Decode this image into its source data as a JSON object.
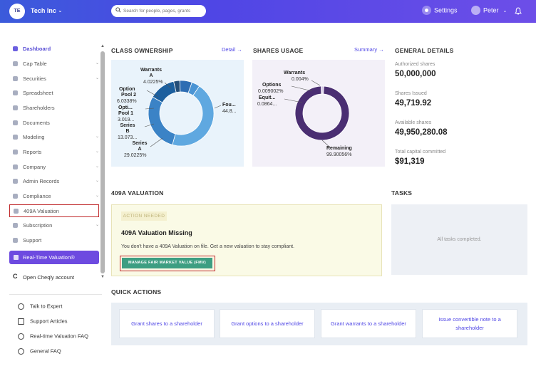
{
  "header": {
    "avatar_initials": "TE",
    "company": "Tech Inc",
    "search_placeholder": "Search for people, pages, grants",
    "settings_label": "Settings",
    "user_name": "Peter"
  },
  "sidebar": {
    "items": [
      {
        "label": "Dashboard",
        "icon": "dashboard-icon",
        "chevron": false
      },
      {
        "label": "Cap Table",
        "icon": "cap-table-icon",
        "chevron": true
      },
      {
        "label": "Securities",
        "icon": "securities-icon",
        "chevron": true
      },
      {
        "label": "Spreadsheet",
        "icon": "spreadsheet-icon",
        "chevron": false
      },
      {
        "label": "Shareholders",
        "icon": "shareholders-icon",
        "chevron": false
      },
      {
        "label": "Documents",
        "icon": "documents-icon",
        "chevron": false
      },
      {
        "label": "Modeling",
        "icon": "modeling-icon",
        "chevron": true
      },
      {
        "label": "Reports",
        "icon": "reports-icon",
        "chevron": true
      },
      {
        "label": "Company",
        "icon": "company-icon",
        "chevron": true
      },
      {
        "label": "Admin Records",
        "icon": "admin-records-icon",
        "chevron": true
      },
      {
        "label": "Compliance",
        "icon": "compliance-icon",
        "chevron": true
      },
      {
        "label": "409A Valuation",
        "icon": "valuation-icon",
        "chevron": false
      },
      {
        "label": "Subscription",
        "icon": "subscription-icon",
        "chevron": true
      },
      {
        "label": "Support",
        "icon": "support-icon",
        "chevron": false
      }
    ],
    "realtime_valuation": "Real-Time Valuation®",
    "open_cheqly": "Open Cheqly account",
    "help_links": [
      {
        "label": "Talk to Expert",
        "icon": "headset-icon"
      },
      {
        "label": "Support Articles",
        "icon": "book-icon"
      },
      {
        "label": "Real-time Valuation FAQ",
        "icon": "help-circle-icon"
      },
      {
        "label": "General FAQ",
        "icon": "help-circle-icon"
      }
    ]
  },
  "class_ownership": {
    "title": "CLASS OWNERSHIP",
    "link": "Detail",
    "labels": {
      "warrants_name": "Warrants",
      "warrants_name2": "A",
      "warrants_pct": "4.0225%",
      "option_pool2_name": "Option",
      "option_pool2_name2": "Pool 2",
      "option_pool2_pct": "6.0338%",
      "option_pool1_name": "Opti...",
      "option_pool1_name2": "Pool 1",
      "option_pool1_pct": "3.019...",
      "series_b_name": "Series",
      "series_b_name2": "B",
      "series_b_pct": "13.073...",
      "series_a_name": "Series",
      "series_a_name2": "A",
      "series_a_pct": "29.0225%",
      "founders_name": "Fou...",
      "founders_pct": "44.8..."
    }
  },
  "shares_usage": {
    "title": "SHARES USAGE",
    "link": "Summary",
    "labels": {
      "warrants_name": "Warrants",
      "warrants_pct": "0.004%",
      "options_name": "Options",
      "options_pct": "0.009002%",
      "equity_name": "Equit...",
      "equity_pct": "0.0864...",
      "remaining_name": "Remaining",
      "remaining_pct": "99.90056%"
    }
  },
  "chart_data": [
    {
      "type": "pie",
      "title": "CLASS OWNERSHIP",
      "donut": true,
      "series": [
        {
          "name": "Founders",
          "value": 44.8
        },
        {
          "name": "Series A",
          "value": 29.0225
        },
        {
          "name": "Series B",
          "value": 13.073
        },
        {
          "name": "Option Pool 1",
          "value": 3.019
        },
        {
          "name": "Option Pool 2",
          "value": 6.0338
        },
        {
          "name": "Warrants A",
          "value": 4.0225
        }
      ],
      "colors": [
        "#5fa8e0",
        "#3b83c6",
        "#1c5f9e",
        "#244e78",
        "#2e6db3",
        "#4a94d4"
      ]
    },
    {
      "type": "pie",
      "title": "SHARES USAGE",
      "donut": true,
      "series": [
        {
          "name": "Remaining",
          "value": 99.90056
        },
        {
          "name": "Equit...",
          "value": 0.0864
        },
        {
          "name": "Options",
          "value": 0.009002
        },
        {
          "name": "Warrants",
          "value": 0.004
        }
      ],
      "colors": [
        "#4a2e72",
        "#6a4a9a",
        "#8c6bbf",
        "#b49ad8"
      ]
    }
  ],
  "general_details": {
    "title": "GENERAL DETAILS",
    "items": [
      {
        "label": "Authorized shares",
        "value": "50,000,000"
      },
      {
        "label": "Shares Issued",
        "value": "49,719.92"
      },
      {
        "label": "Available shares",
        "value": "49,950,280.08"
      },
      {
        "label": "Total capital committed",
        "value": "$91,319"
      }
    ]
  },
  "valuation": {
    "section_title": "409A VALUATION",
    "badge": "ACTION NEEDED",
    "title": "409A Valuation Missing",
    "description": "You don't have a 409A Valuation on file. Get a new valuation to stay compliant.",
    "button": "MANAGE FAIR MARKET VALUE (FMV)"
  },
  "tasks": {
    "title": "TASKS",
    "empty_text": "All tasks completed."
  },
  "quick_actions": {
    "title": "QUICK ACTIONS",
    "items": [
      "Grant shares to a shareholder",
      "Grant options to a shareholder",
      "Grant warrants to a shareholder",
      "Issue convertible note to a shareholder"
    ]
  }
}
